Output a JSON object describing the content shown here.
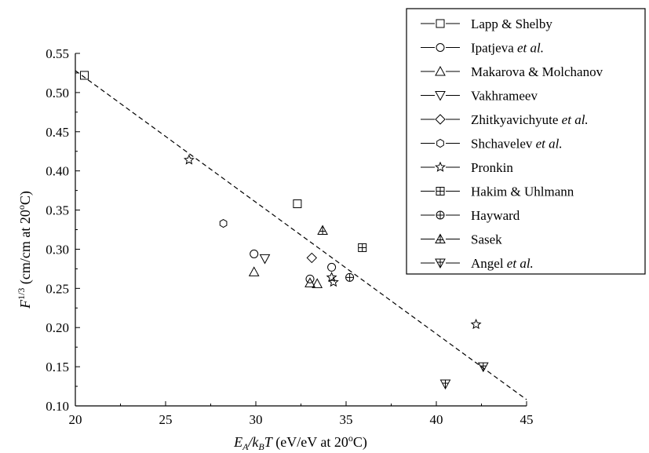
{
  "chart_data": {
    "type": "scatter",
    "xlabel": {
      "main": "E",
      "sub1": "A",
      "slash": "/k",
      "sub2": "B",
      "T": "T",
      "unit": " (eV/eV at 20",
      "deg": "o",
      "end": "C)"
    },
    "ylabel": {
      "main": "F",
      "sup": "1/3",
      "unit": " (cm/cm at 20",
      "deg": "o",
      "end": "C)"
    },
    "xlim": [
      20,
      45
    ],
    "ylim": [
      0.1,
      0.55
    ],
    "xticks": [
      "20",
      "25",
      "30",
      "35",
      "40",
      "45"
    ],
    "yticks": [
      "0.10",
      "0.15",
      "0.20",
      "0.25",
      "0.30",
      "0.35",
      "0.40",
      "0.45",
      "0.50",
      "0.55"
    ],
    "grid": false,
    "legend_position": "top-right",
    "fit_line": {
      "style": "dashed",
      "x": [
        20,
        45
      ],
      "y": [
        0.528,
        0.108
      ]
    },
    "series": [
      {
        "name": "Lapp & Shelby",
        "marker": "square",
        "points": [
          [
            20.5,
            0.522
          ],
          [
            32.3,
            0.358
          ]
        ]
      },
      {
        "name": "Ipatjeva",
        "suffix": " et al.",
        "marker": "circle",
        "points": [
          [
            29.9,
            0.294
          ],
          [
            33.0,
            0.262
          ],
          [
            34.2,
            0.277
          ]
        ]
      },
      {
        "name": "Makarova & Molchanov",
        "marker": "triangle-up",
        "points": [
          [
            29.9,
            0.271
          ],
          [
            33.0,
            0.257
          ],
          [
            33.4,
            0.256
          ]
        ]
      },
      {
        "name": "Vakhrameev",
        "marker": "triangle-down",
        "points": [
          [
            30.5,
            0.288
          ]
        ]
      },
      {
        "name": "Zhitkyavichyute",
        "suffix": " et al.",
        "marker": "diamond",
        "points": [
          [
            33.1,
            0.289
          ]
        ]
      },
      {
        "name": "Shchavelev",
        "suffix": " et al.",
        "marker": "hexagon",
        "points": [
          [
            28.2,
            0.333
          ]
        ]
      },
      {
        "name": "Pronkin",
        "marker": "star",
        "points": [
          [
            26.3,
            0.414
          ],
          [
            34.3,
            0.258
          ],
          [
            34.2,
            0.264
          ],
          [
            42.2,
            0.204
          ]
        ]
      },
      {
        "name": "Hakim & Uhlmann",
        "marker": "square-plus",
        "points": [
          [
            35.9,
            0.302
          ]
        ]
      },
      {
        "name": "Hayward",
        "marker": "circle-plus",
        "points": [
          [
            35.2,
            0.264
          ]
        ]
      },
      {
        "name": "Sasek",
        "marker": "triangle-up-bar",
        "points": [
          [
            33.7,
            0.324
          ]
        ]
      },
      {
        "name": "Angel",
        "suffix": " et al.",
        "marker": "triangle-down-bar",
        "points": [
          [
            40.5,
            0.128
          ],
          [
            42.6,
            0.15
          ]
        ]
      }
    ]
  }
}
